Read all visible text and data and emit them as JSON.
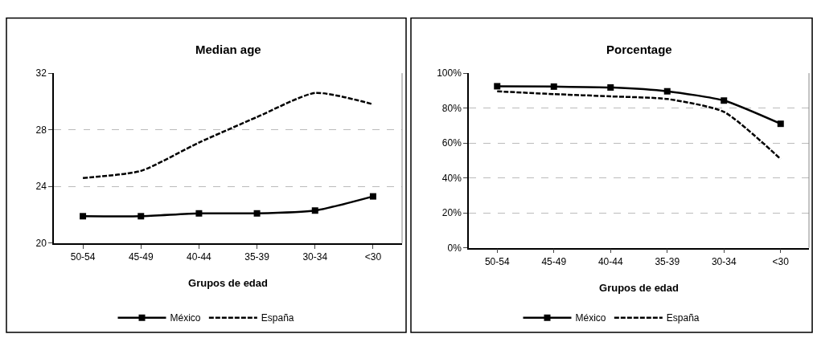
{
  "chart_data": [
    {
      "type": "line",
      "title": "Median age",
      "xlabel": "Grupos de edad",
      "categories": [
        "50-54",
        "45-49",
        "40-44",
        "35-39",
        "30-34",
        "<30"
      ],
      "series": [
        {
          "name": "México",
          "color": "#000000",
          "marker": "square",
          "line_style": "solid",
          "values": [
            21.9,
            21.9,
            22.1,
            22.1,
            22.3,
            23.3
          ]
        },
        {
          "name": "España",
          "color": "#000000",
          "marker": "none",
          "line_style": "dashed",
          "values": [
            24.6,
            25.1,
            27.1,
            28.9,
            30.6,
            29.8
          ]
        }
      ],
      "ylim": [
        20,
        32
      ],
      "yticks": [
        20,
        24,
        28,
        32
      ],
      "grid": "y",
      "legend": "bottom"
    },
    {
      "type": "line",
      "title": "Porcentage",
      "xlabel": "Grupos de edad",
      "categories": [
        "50-54",
        "45-49",
        "40-44",
        "35-39",
        "30-34",
        "<30"
      ],
      "series": [
        {
          "name": "México",
          "color": "#000000",
          "marker": "square",
          "line_style": "solid",
          "values": [
            92.5,
            92.3,
            91.8,
            89.6,
            84.3,
            71
          ]
        },
        {
          "name": "España",
          "color": "#000000",
          "marker": "none",
          "line_style": "dashed",
          "values": [
            89.6,
            88,
            86.7,
            85.2,
            77.8,
            50.8
          ]
        }
      ],
      "ylim": [
        0,
        100
      ],
      "yticks": [
        {
          "value": 0,
          "label": "0%"
        },
        {
          "value": 20,
          "label": "20%"
        },
        {
          "value": 40,
          "label": "40%"
        },
        {
          "value": 60,
          "label": "60%"
        },
        {
          "value": 80,
          "label": "80%"
        },
        {
          "value": 100,
          "label": "100%"
        }
      ],
      "grid": "y",
      "legend": "bottom"
    }
  ]
}
